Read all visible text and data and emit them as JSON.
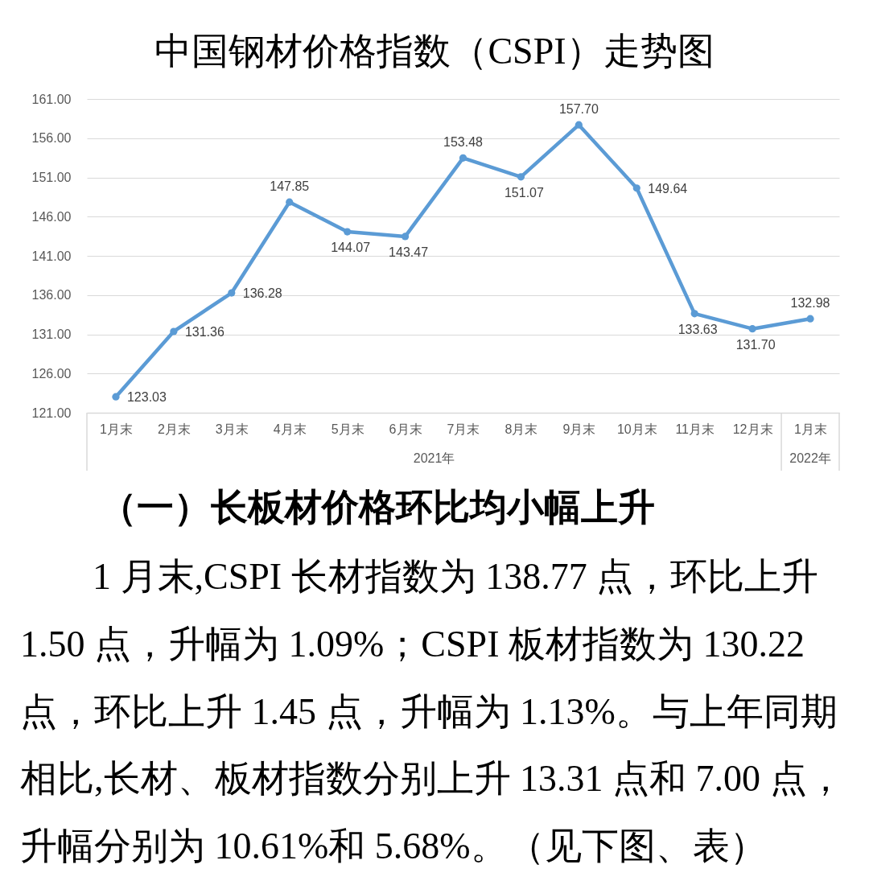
{
  "chart_data": {
    "type": "line",
    "title": "中国钢材价格指数（CSPI）走势图",
    "categories": [
      "1月末",
      "2月末",
      "3月末",
      "4月末",
      "5月末",
      "6月末",
      "7月末",
      "8月末",
      "9月末",
      "10月末",
      "11月末",
      "12月末",
      "1月末"
    ],
    "series": [
      {
        "color": "#5b9bd5",
        "values": [
          123.03,
          131.36,
          136.28,
          147.85,
          144.07,
          143.47,
          153.48,
          151.07,
          157.7,
          149.64,
          133.63,
          131.7,
          132.98
        ],
        "value_labels": [
          "123.03",
          "131.36",
          "136.28",
          "147.85",
          "144.07",
          "143.47",
          "153.48",
          "151.07",
          "157.70",
          "149.64",
          "133.63",
          "131.70",
          "132.98"
        ]
      }
    ],
    "ylim": [
      121,
      161
    ],
    "yticks": [
      {
        "value": 121,
        "label": "121.00"
      },
      {
        "value": 126,
        "label": "126.00"
      },
      {
        "value": 131,
        "label": "131.00"
      },
      {
        "value": 136,
        "label": "136.00"
      },
      {
        "value": 141,
        "label": "141.00"
      },
      {
        "value": 146,
        "label": "146.00"
      },
      {
        "value": 151,
        "label": "151.00"
      },
      {
        "value": 156,
        "label": "156.00"
      },
      {
        "value": 161,
        "label": "161.00"
      }
    ],
    "grid": "y",
    "marker": "circle",
    "line_style": "solid",
    "annotations": [
      "2021年",
      "2022年",
      "（一）长板材价格环比均小幅上升",
      "1 月末,CSPI 长材指数为 138.77 点，环比上升",
      "1.50 点，升幅为 1.09%；CSPI 板材指数为 130.22",
      "点，环比上升 1.45 点，升幅为 1.13%。与上年同期",
      "相比,长材、板材指数分别上升 13.31 点和 7.00 点，",
      "升幅分别为 10.61%和 5.68%。（见下图、表）"
    ]
  }
}
